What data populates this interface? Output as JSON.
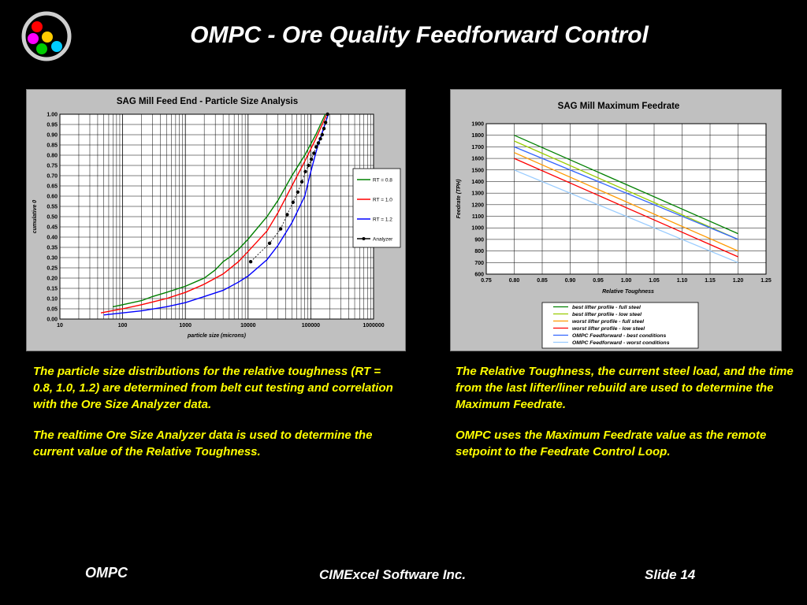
{
  "slide": {
    "title": "OMPC - Ore Quality Feedforward Control",
    "footer_left": "OMPC",
    "footer_center": "CIMExcel Software Inc.",
    "footer_right": "Slide 14",
    "caption_left": [
      "The particle size distributions for the relative toughness (RT = 0.8, 1.0, 1.2) are determined from belt cut testing and correlation with the Ore Size Analyzer data.",
      "The realtime Ore Size Analyzer data is used to determine the current value of the Relative Toughness."
    ],
    "caption_right": [
      "The Relative Toughness, the current steel load, and the time from the last lifter/liner rebuild are used to determine the Maximum Feedrate.",
      "OMPC uses the Maximum Feedrate value as the remote setpoint to the Feedrate Control Loop."
    ],
    "logo_colors": [
      "#ff0000",
      "#ff00ff",
      "#ffcc00",
      "#00cc00",
      "#00ccff"
    ]
  },
  "chart_data": [
    {
      "type": "line",
      "title": "SAG Mill Feed End - Particle Size Analysis",
      "xlabel": "particle size (microns)",
      "ylabel": "cumulative 0",
      "xscale": "log",
      "xlim": [
        10,
        1000000
      ],
      "ylim": [
        0,
        1
      ],
      "xticks": [
        10,
        100,
        1000,
        10000,
        100000,
        1000000
      ],
      "xtick_labels": [
        "10",
        "100",
        "1000",
        "10000",
        "100000",
        "1000000"
      ],
      "yticks": [
        0,
        0.05,
        0.1,
        0.15,
        0.2,
        0.25,
        0.3,
        0.35,
        0.4,
        0.45,
        0.5,
        0.55,
        0.6,
        0.65,
        0.7,
        0.75,
        0.8,
        0.85,
        0.9,
        0.95,
        1.0
      ],
      "ytick_labels": [
        "0.00",
        "0.05",
        "0.10",
        "0.15",
        "0.20",
        "0.25",
        "0.30",
        "0.35",
        "0.40",
        "0.45",
        "0.50",
        "0.55",
        "0.60",
        "0.65",
        "0.70",
        "0.75",
        "0.80",
        "0.85",
        "0.90",
        "0.95",
        "1.00"
      ],
      "grid": true,
      "legend_position": "right",
      "series": [
        {
          "name": "RT = 0.8",
          "color": "#008000",
          "marker": false,
          "x": [
            70,
            100,
            200,
            300,
            500,
            1000,
            2000,
            3000,
            4000,
            5000,
            7000,
            10000,
            20000,
            30000,
            50000,
            80000,
            120000,
            170000
          ],
          "y": [
            0.06,
            0.07,
            0.09,
            0.11,
            0.13,
            0.16,
            0.2,
            0.24,
            0.28,
            0.3,
            0.34,
            0.39,
            0.5,
            0.58,
            0.7,
            0.8,
            0.9,
            1.0
          ]
        },
        {
          "name": "RT = 1.0",
          "color": "#ff0000",
          "marker": false,
          "x": [
            45,
            100,
            200,
            500,
            1000,
            2000,
            4000,
            7000,
            10000,
            20000,
            30000,
            50000,
            80000,
            120000,
            180000
          ],
          "y": [
            0.03,
            0.05,
            0.07,
            0.1,
            0.13,
            0.17,
            0.22,
            0.28,
            0.33,
            0.43,
            0.52,
            0.65,
            0.77,
            0.88,
            1.0
          ]
        },
        {
          "name": "RT = 1.2",
          "color": "#0000ff",
          "marker": false,
          "x": [
            50,
            100,
            200,
            500,
            1000,
            2000,
            4000,
            7000,
            10000,
            20000,
            30000,
            50000,
            80000,
            100000,
            130000,
            190000
          ],
          "y": [
            0.02,
            0.03,
            0.04,
            0.06,
            0.08,
            0.11,
            0.14,
            0.18,
            0.21,
            0.29,
            0.36,
            0.47,
            0.6,
            0.72,
            0.85,
            1.0
          ]
        },
        {
          "name": "Analyzer",
          "color": "#000000",
          "marker": true,
          "x": [
            11000,
            22000,
            33000,
            42000,
            52000,
            62000,
            72000,
            82000,
            92000,
            102000,
            112000,
            122000,
            132000,
            142000,
            152000,
            162000,
            172000,
            185000
          ],
          "y": [
            0.28,
            0.37,
            0.44,
            0.51,
            0.57,
            0.62,
            0.67,
            0.72,
            0.75,
            0.78,
            0.81,
            0.84,
            0.86,
            0.88,
            0.9,
            0.93,
            0.96,
            1.0
          ]
        }
      ]
    },
    {
      "type": "line",
      "title": "SAG Mill Maximum Feedrate",
      "xlabel": "Relative Toughness",
      "ylabel": "Feedrate (TPH)",
      "xlim": [
        0.75,
        1.25
      ],
      "ylim": [
        600,
        1900
      ],
      "xticks": [
        0.75,
        0.8,
        0.85,
        0.9,
        0.95,
        1.0,
        1.05,
        1.1,
        1.15,
        1.2,
        1.25
      ],
      "xtick_labels": [
        "0.75",
        "0.80",
        "0.85",
        "0.90",
        "0.95",
        "1.00",
        "1.05",
        "1.10",
        "1.15",
        "1.20",
        "1.25"
      ],
      "yticks": [
        600,
        700,
        800,
        900,
        1000,
        1100,
        1200,
        1300,
        1400,
        1500,
        1600,
        1700,
        1800,
        1900
      ],
      "ytick_labels": [
        "600",
        "700",
        "800",
        "900",
        "1000",
        "1100",
        "1200",
        "1300",
        "1400",
        "1500",
        "1600",
        "1700",
        "1800",
        "1900"
      ],
      "grid": true,
      "legend_position": "bottom",
      "series": [
        {
          "name": "best lifter profile - full steel",
          "color": "#008000",
          "x": [
            0.8,
            1.2
          ],
          "y": [
            1800,
            950
          ]
        },
        {
          "name": "best lifter profile - low steel",
          "color": "#99cc00",
          "x": [
            0.8,
            1.2
          ],
          "y": [
            1750,
            900
          ]
        },
        {
          "name": "worst lifter profile - full steel",
          "color": "#ff9900",
          "x": [
            0.8,
            1.2
          ],
          "y": [
            1650,
            800
          ]
        },
        {
          "name": "worst lifter profile - low steel",
          "color": "#ff0000",
          "x": [
            0.8,
            1.2
          ],
          "y": [
            1600,
            750
          ]
        },
        {
          "name": "OMPC Feedforward - best conditions",
          "color": "#3366ff",
          "x": [
            0.8,
            1.2
          ],
          "y": [
            1700,
            900
          ]
        },
        {
          "name": "OMPC Feedforward - worst conditions",
          "color": "#99ccff",
          "x": [
            0.8,
            1.2
          ],
          "y": [
            1500,
            700
          ]
        }
      ]
    }
  ]
}
